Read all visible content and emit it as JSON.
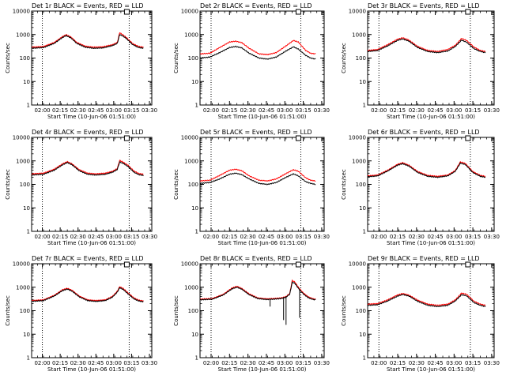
{
  "page": {
    "background": "#ffffff"
  },
  "common": {
    "ylabel": "Counts/sec",
    "xlabel": "Start Time (10-Jun-06 01:51:00)",
    "xticks": [
      "02:00",
      "02:15",
      "02:30",
      "02:45",
      "03:00",
      "03:15",
      "03:30"
    ],
    "yticks": [
      "1",
      "10",
      "100",
      "1000",
      "10000"
    ],
    "colors": {
      "events": "#000000",
      "lld": "#ff0000",
      "marker": "#000000"
    }
  },
  "chart_data": [
    {
      "type": "line",
      "title": "Det 1r BLACK = Events, RED = LLD",
      "xlabel": "Start Time (10-Jun-06 01:51:00)",
      "ylabel": "Counts/sec",
      "ylog": true,
      "ylim": [
        1,
        10000
      ],
      "xlim_minutes": [
        0,
        101
      ],
      "vlines_minutes": [
        9,
        82
      ],
      "events_keypoints": [
        [
          0,
          260
        ],
        [
          10,
          280
        ],
        [
          19,
          420
        ],
        [
          26,
          750
        ],
        [
          29,
          900
        ],
        [
          33,
          720
        ],
        [
          38,
          420
        ],
        [
          45,
          290
        ],
        [
          52,
          260
        ],
        [
          60,
          270
        ],
        [
          68,
          340
        ],
        [
          72,
          420
        ],
        [
          74,
          1000
        ],
        [
          77,
          850
        ],
        [
          80,
          650
        ],
        [
          85,
          370
        ],
        [
          90,
          280
        ],
        [
          94,
          260
        ]
      ],
      "lld_keypoints": [
        [
          0,
          290
        ],
        [
          10,
          310
        ],
        [
          19,
          460
        ],
        [
          26,
          820
        ],
        [
          29,
          980
        ],
        [
          33,
          790
        ],
        [
          38,
          460
        ],
        [
          45,
          320
        ],
        [
          52,
          290
        ],
        [
          60,
          300
        ],
        [
          68,
          370
        ],
        [
          72,
          460
        ],
        [
          74,
          1200
        ],
        [
          77,
          950
        ],
        [
          80,
          720
        ],
        [
          85,
          410
        ],
        [
          90,
          310
        ],
        [
          94,
          290
        ]
      ]
    },
    {
      "type": "line",
      "title": "Det 2r BLACK = Events, RED = LLD",
      "xlabel": "Start Time (10-Jun-06 01:51:00)",
      "ylabel": "Counts/sec",
      "ylog": true,
      "ylim": [
        1,
        10000
      ],
      "xlim_minutes": [
        0,
        101
      ],
      "vlines_minutes": [
        9,
        82
      ],
      "events_keypoints": [
        [
          0,
          100
        ],
        [
          8,
          110
        ],
        [
          16,
          170
        ],
        [
          24,
          280
        ],
        [
          29,
          310
        ],
        [
          34,
          270
        ],
        [
          40,
          160
        ],
        [
          48,
          100
        ],
        [
          55,
          90
        ],
        [
          62,
          110
        ],
        [
          70,
          200
        ],
        [
          76,
          300
        ],
        [
          80,
          240
        ],
        [
          86,
          130
        ],
        [
          90,
          100
        ],
        [
          94,
          90
        ]
      ],
      "lld_keypoints": [
        [
          0,
          150
        ],
        [
          8,
          160
        ],
        [
          16,
          280
        ],
        [
          24,
          480
        ],
        [
          29,
          520
        ],
        [
          34,
          450
        ],
        [
          40,
          260
        ],
        [
          48,
          150
        ],
        [
          55,
          140
        ],
        [
          62,
          170
        ],
        [
          70,
          330
        ],
        [
          76,
          560
        ],
        [
          80,
          480
        ],
        [
          86,
          210
        ],
        [
          90,
          160
        ],
        [
          94,
          150
        ]
      ]
    },
    {
      "type": "line",
      "title": "Det 3r BLACK = Events, RED = LLD",
      "xlabel": "Start Time (10-Jun-06 01:51:00)",
      "ylabel": "Counts/sec",
      "ylog": true,
      "ylim": [
        1,
        10000
      ],
      "xlim_minutes": [
        0,
        101
      ],
      "vlines_minutes": [
        9,
        82
      ],
      "events_keypoints": [
        [
          0,
          190
        ],
        [
          8,
          210
        ],
        [
          16,
          330
        ],
        [
          24,
          570
        ],
        [
          28,
          650
        ],
        [
          33,
          520
        ],
        [
          40,
          280
        ],
        [
          48,
          190
        ],
        [
          56,
          170
        ],
        [
          64,
          200
        ],
        [
          70,
          310
        ],
        [
          75,
          580
        ],
        [
          79,
          470
        ],
        [
          85,
          250
        ],
        [
          90,
          190
        ],
        [
          94,
          170
        ]
      ],
      "lld_keypoints": [
        [
          0,
          210
        ],
        [
          8,
          230
        ],
        [
          16,
          370
        ],
        [
          24,
          640
        ],
        [
          28,
          730
        ],
        [
          33,
          580
        ],
        [
          40,
          310
        ],
        [
          48,
          210
        ],
        [
          56,
          190
        ],
        [
          64,
          230
        ],
        [
          70,
          350
        ],
        [
          75,
          680
        ],
        [
          79,
          560
        ],
        [
          85,
          290
        ],
        [
          90,
          210
        ],
        [
          94,
          190
        ]
      ]
    },
    {
      "type": "line",
      "title": "Det 4r BLACK = Events, RED = LLD",
      "xlabel": "Start Time (10-Jun-06 01:51:00)",
      "ylabel": "Counts/sec",
      "ylog": true,
      "ylim": [
        1,
        10000
      ],
      "xlim_minutes": [
        0,
        101
      ],
      "vlines_minutes": [
        9,
        82
      ],
      "events_keypoints": [
        [
          0,
          250
        ],
        [
          10,
          270
        ],
        [
          19,
          400
        ],
        [
          26,
          680
        ],
        [
          30,
          850
        ],
        [
          34,
          680
        ],
        [
          40,
          380
        ],
        [
          47,
          270
        ],
        [
          54,
          250
        ],
        [
          62,
          270
        ],
        [
          68,
          330
        ],
        [
          72,
          430
        ],
        [
          74,
          900
        ],
        [
          77,
          780
        ],
        [
          81,
          580
        ],
        [
          86,
          330
        ],
        [
          90,
          260
        ],
        [
          94,
          240
        ]
      ],
      "lld_keypoints": [
        [
          0,
          280
        ],
        [
          10,
          300
        ],
        [
          19,
          440
        ],
        [
          26,
          750
        ],
        [
          30,
          930
        ],
        [
          34,
          740
        ],
        [
          40,
          420
        ],
        [
          47,
          300
        ],
        [
          54,
          280
        ],
        [
          62,
          300
        ],
        [
          68,
          360
        ],
        [
          72,
          470
        ],
        [
          74,
          1050
        ],
        [
          77,
          880
        ],
        [
          81,
          650
        ],
        [
          86,
          370
        ],
        [
          90,
          290
        ],
        [
          94,
          270
        ]
      ]
    },
    {
      "type": "line",
      "title": "Det 5r BLACK = Events, RED = LLD",
      "xlabel": "Start Time (10-Jun-06 01:51:00)",
      "ylabel": "Counts/sec",
      "ylog": true,
      "ylim": [
        1,
        10000
      ],
      "xlim_minutes": [
        0,
        101
      ],
      "vlines_minutes": [
        9,
        82
      ],
      "events_keypoints": [
        [
          0,
          110
        ],
        [
          8,
          120
        ],
        [
          16,
          170
        ],
        [
          24,
          270
        ],
        [
          29,
          300
        ],
        [
          34,
          260
        ],
        [
          40,
          170
        ],
        [
          48,
          110
        ],
        [
          55,
          100
        ],
        [
          62,
          120
        ],
        [
          70,
          200
        ],
        [
          76,
          280
        ],
        [
          80,
          230
        ],
        [
          86,
          130
        ],
        [
          90,
          110
        ],
        [
          94,
          100
        ]
      ],
      "lld_keypoints": [
        [
          0,
          140
        ],
        [
          8,
          150
        ],
        [
          16,
          240
        ],
        [
          24,
          400
        ],
        [
          29,
          440
        ],
        [
          34,
          380
        ],
        [
          40,
          230
        ],
        [
          48,
          150
        ],
        [
          55,
          140
        ],
        [
          62,
          170
        ],
        [
          70,
          290
        ],
        [
          76,
          420
        ],
        [
          80,
          360
        ],
        [
          86,
          190
        ],
        [
          90,
          150
        ],
        [
          94,
          140
        ]
      ]
    },
    {
      "type": "line",
      "title": "Det 6r BLACK = Events, RED = LLD",
      "xlabel": "Start Time (10-Jun-06 01:51:00)",
      "ylabel": "Counts/sec",
      "ylog": true,
      "ylim": [
        1,
        10000
      ],
      "xlim_minutes": [
        0,
        101
      ],
      "vlines_minutes": [
        9,
        82
      ],
      "events_keypoints": [
        [
          0,
          210
        ],
        [
          8,
          230
        ],
        [
          16,
          370
        ],
        [
          24,
          660
        ],
        [
          28,
          760
        ],
        [
          33,
          600
        ],
        [
          40,
          320
        ],
        [
          48,
          220
        ],
        [
          56,
          200
        ],
        [
          64,
          230
        ],
        [
          70,
          360
        ],
        [
          74,
          800
        ],
        [
          78,
          700
        ],
        [
          84,
          320
        ],
        [
          90,
          220
        ],
        [
          94,
          200
        ]
      ],
      "lld_keypoints": [
        [
          0,
          230
        ],
        [
          8,
          250
        ],
        [
          16,
          400
        ],
        [
          24,
          720
        ],
        [
          28,
          830
        ],
        [
          33,
          650
        ],
        [
          40,
          350
        ],
        [
          48,
          240
        ],
        [
          56,
          220
        ],
        [
          64,
          250
        ],
        [
          70,
          390
        ],
        [
          74,
          900
        ],
        [
          78,
          780
        ],
        [
          84,
          350
        ],
        [
          90,
          240
        ],
        [
          94,
          220
        ]
      ]
    },
    {
      "type": "line",
      "title": "Det 7r BLACK = Events, RED = LLD",
      "xlabel": "Start Time (10-Jun-06 01:51:00)",
      "ylabel": "Counts/sec",
      "ylog": true,
      "ylim": [
        1,
        10000
      ],
      "xlim_minutes": [
        0,
        101
      ],
      "vlines_minutes": [
        9,
        82
      ],
      "events_keypoints": [
        [
          0,
          250
        ],
        [
          10,
          270
        ],
        [
          19,
          420
        ],
        [
          26,
          720
        ],
        [
          30,
          830
        ],
        [
          34,
          680
        ],
        [
          40,
          390
        ],
        [
          47,
          270
        ],
        [
          54,
          250
        ],
        [
          62,
          270
        ],
        [
          68,
          380
        ],
        [
          72,
          620
        ],
        [
          74,
          950
        ],
        [
          77,
          800
        ],
        [
          81,
          520
        ],
        [
          86,
          320
        ],
        [
          90,
          260
        ],
        [
          94,
          240
        ]
      ],
      "lld_keypoints": [
        [
          0,
          270
        ],
        [
          10,
          290
        ],
        [
          19,
          450
        ],
        [
          26,
          780
        ],
        [
          30,
          900
        ],
        [
          34,
          740
        ],
        [
          40,
          420
        ],
        [
          47,
          290
        ],
        [
          54,
          270
        ],
        [
          62,
          290
        ],
        [
          68,
          410
        ],
        [
          72,
          680
        ],
        [
          74,
          1050
        ],
        [
          77,
          880
        ],
        [
          81,
          580
        ],
        [
          86,
          350
        ],
        [
          90,
          280
        ],
        [
          94,
          260
        ]
      ]
    },
    {
      "type": "line",
      "title": "Det 8r BLACK = Events, RED = LLD",
      "xlabel": "Start Time (10-Jun-06 01:51:00)",
      "ylabel": "Counts/sec",
      "ylog": true,
      "ylim": [
        1,
        10000
      ],
      "xlim_minutes": [
        0,
        101
      ],
      "vlines_minutes": [
        9,
        82
      ],
      "events_keypoints": [
        [
          0,
          290
        ],
        [
          10,
          310
        ],
        [
          19,
          470
        ],
        [
          26,
          850
        ],
        [
          30,
          1000
        ],
        [
          34,
          820
        ],
        [
          40,
          480
        ],
        [
          47,
          330
        ],
        [
          54,
          300
        ],
        [
          60,
          310
        ],
        [
          66,
          330
        ],
        [
          70,
          380
        ],
        [
          73,
          500
        ],
        [
          75,
          1600
        ],
        [
          77,
          1500
        ],
        [
          80,
          900
        ],
        [
          84,
          520
        ],
        [
          88,
          360
        ],
        [
          92,
          300
        ],
        [
          94,
          290
        ]
      ],
      "lld_keypoints": [
        [
          0,
          310
        ],
        [
          10,
          330
        ],
        [
          19,
          500
        ],
        [
          26,
          920
        ],
        [
          30,
          1100
        ],
        [
          34,
          880
        ],
        [
          40,
          520
        ],
        [
          47,
          350
        ],
        [
          54,
          320
        ],
        [
          60,
          330
        ],
        [
          66,
          350
        ],
        [
          70,
          400
        ],
        [
          73,
          540
        ],
        [
          75,
          1900
        ],
        [
          77,
          1700
        ],
        [
          80,
          1000
        ],
        [
          84,
          570
        ],
        [
          88,
          390
        ],
        [
          92,
          320
        ],
        [
          94,
          310
        ]
      ],
      "events_dropouts_minutes": [
        [
          57,
          150
        ],
        [
          68,
          40
        ],
        [
          70,
          25
        ],
        [
          81,
          50
        ]
      ]
    },
    {
      "type": "line",
      "title": "Det 9r BLACK = Events, RED = LLD",
      "xlabel": "Start Time (10-Jun-06 01:51:00)",
      "ylabel": "Counts/sec",
      "ylog": true,
      "ylim": [
        1,
        10000
      ],
      "xlim_minutes": [
        0,
        101
      ],
      "vlines_minutes": [
        9,
        82
      ],
      "events_keypoints": [
        [
          0,
          170
        ],
        [
          8,
          180
        ],
        [
          16,
          260
        ],
        [
          24,
          420
        ],
        [
          28,
          490
        ],
        [
          33,
          420
        ],
        [
          40,
          250
        ],
        [
          48,
          170
        ],
        [
          56,
          150
        ],
        [
          64,
          170
        ],
        [
          70,
          260
        ],
        [
          75,
          480
        ],
        [
          79,
          430
        ],
        [
          85,
          220
        ],
        [
          90,
          170
        ],
        [
          94,
          150
        ]
      ],
      "lld_keypoints": [
        [
          0,
          190
        ],
        [
          8,
          200
        ],
        [
          16,
          290
        ],
        [
          24,
          470
        ],
        [
          28,
          540
        ],
        [
          33,
          460
        ],
        [
          40,
          280
        ],
        [
          48,
          190
        ],
        [
          56,
          170
        ],
        [
          64,
          190
        ],
        [
          70,
          290
        ],
        [
          75,
          560
        ],
        [
          79,
          500
        ],
        [
          85,
          250
        ],
        [
          90,
          190
        ],
        [
          94,
          170
        ]
      ]
    }
  ]
}
